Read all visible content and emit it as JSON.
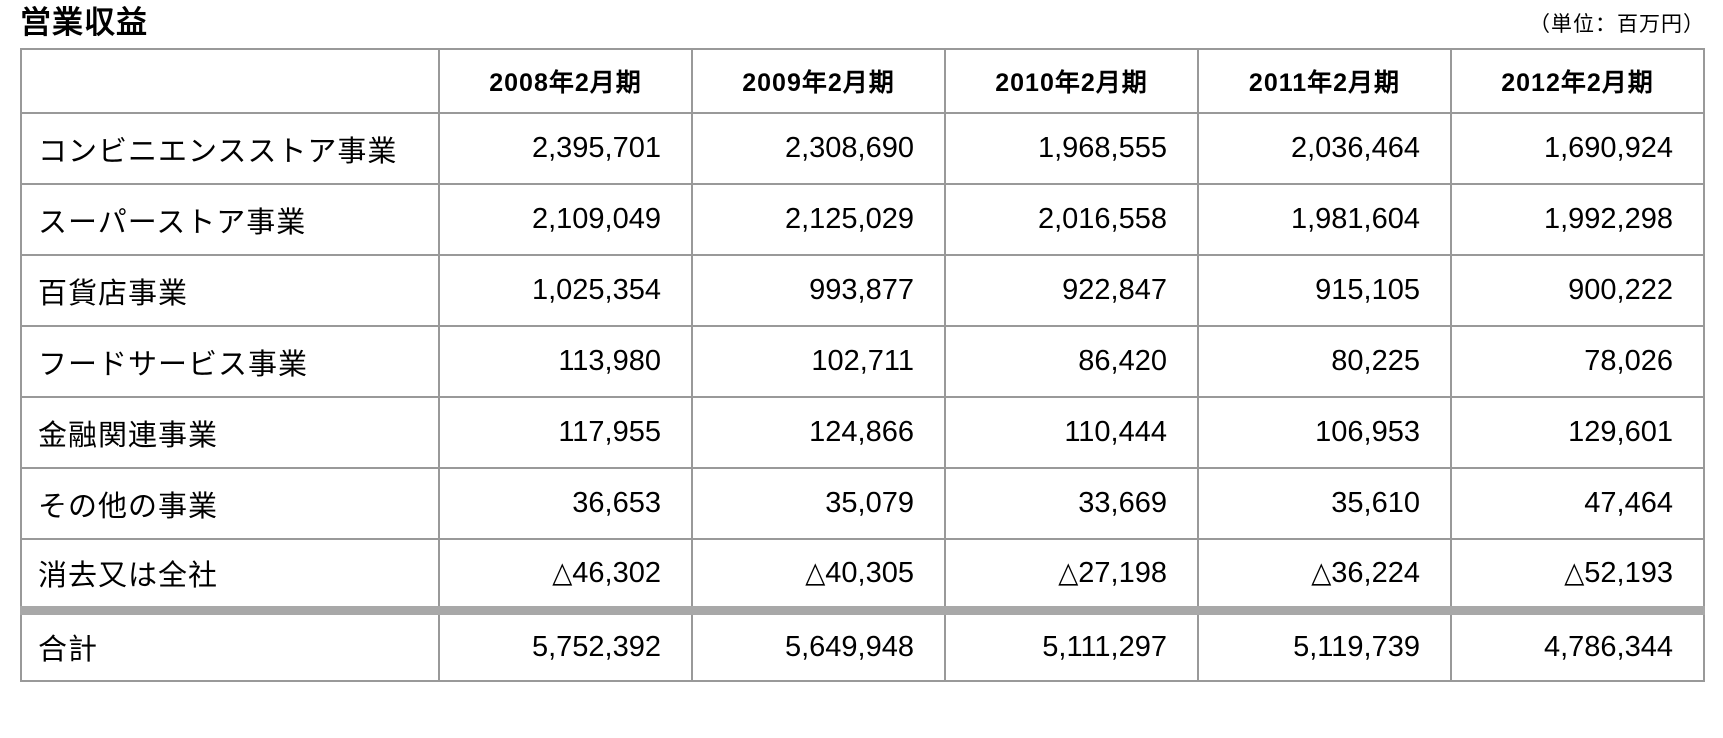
{
  "page": {
    "title": "営業収益",
    "unit_note": "（単位：百万円）"
  },
  "chart_data": {
    "type": "table",
    "title": "営業収益",
    "unit": "百万円",
    "columns": [
      "2008年2月期",
      "2009年2月期",
      "2010年2月期",
      "2011年2月期",
      "2012年2月期"
    ],
    "rows": [
      {
        "label": "コンビニエンスストア事業",
        "values": [
          "2,395,701",
          "2,308,690",
          "1,968,555",
          "2,036,464",
          "1,690,924"
        ]
      },
      {
        "label": "スーパーストア事業",
        "values": [
          "2,109,049",
          "2,125,029",
          "2,016,558",
          "1,981,604",
          "1,992,298"
        ]
      },
      {
        "label": "百貨店事業",
        "values": [
          "1,025,354",
          "993,877",
          "922,847",
          "915,105",
          "900,222"
        ]
      },
      {
        "label": "フードサービス事業",
        "values": [
          "113,980",
          "102,711",
          "86,420",
          "80,225",
          "78,026"
        ]
      },
      {
        "label": "金融関連事業",
        "values": [
          "117,955",
          "124,866",
          "110,444",
          "106,953",
          "129,601"
        ]
      },
      {
        "label": "その他の事業",
        "values": [
          "36,653",
          "35,079",
          "33,669",
          "35,610",
          "47,464"
        ]
      },
      {
        "label": "消去又は全社",
        "values": [
          "△46,302",
          "△40,305",
          "△27,198",
          "△36,224",
          "△52,193"
        ]
      },
      {
        "label": "合計",
        "values": [
          "5,752,392",
          "5,649,948",
          "5,111,297",
          "5,119,739",
          "4,786,344"
        ],
        "is_total": true
      }
    ]
  }
}
